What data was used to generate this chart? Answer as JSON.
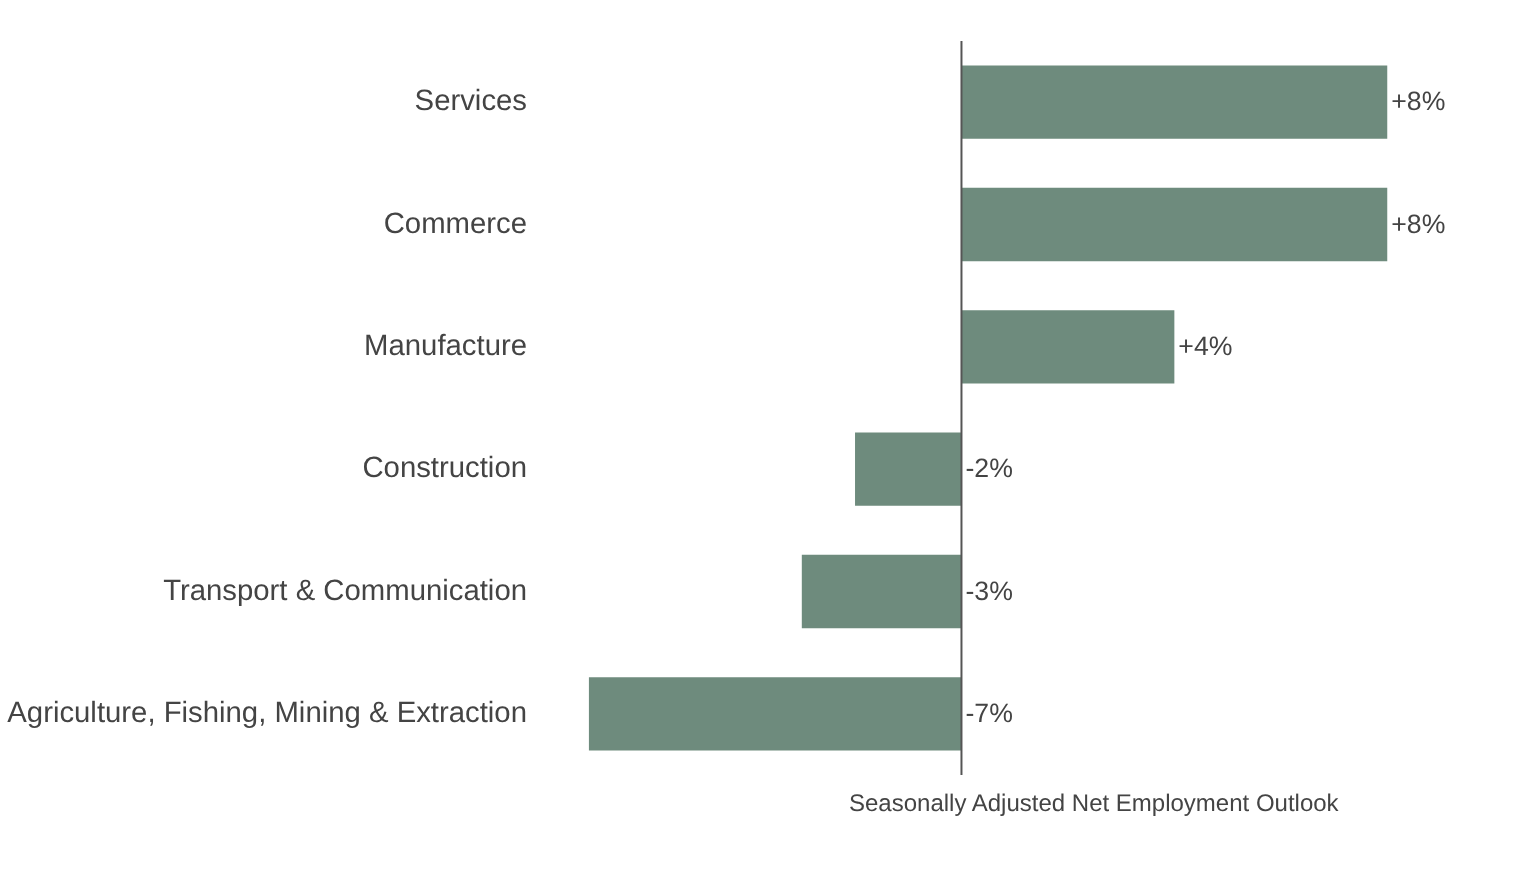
{
  "chart_data": {
    "type": "bar",
    "orientation": "horizontal",
    "categories": [
      "Services",
      "Commerce",
      "Manufacture",
      "Construction",
      "Transport & Communication",
      "Agriculture, Fishing, Mining & Extraction"
    ],
    "values": [
      8,
      8,
      4,
      -2,
      -3,
      -7
    ],
    "value_labels": [
      "+8%",
      "+8%",
      "+4%",
      "-2%",
      "-3%",
      "-7%"
    ],
    "color": "#6e8b7d",
    "grid": false,
    "annotations": [
      "Seasonally Adjusted Net Employment Outlook"
    ]
  }
}
